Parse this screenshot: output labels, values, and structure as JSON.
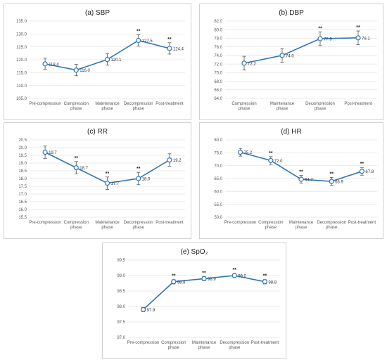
{
  "chart_data": [
    {
      "type": "line",
      "title": "(a) SBP",
      "categories": [
        "Pre-compression",
        "Compression phase",
        "Maintenance phase",
        "Decompression phase",
        "Post-treatment"
      ],
      "values": [
        118.4,
        116.0,
        120.1,
        127.5,
        124.4
      ],
      "error": [
        2.2,
        2.2,
        2.2,
        2.2,
        2.2
      ],
      "significance": [
        "",
        "",
        "",
        "**",
        "**"
      ],
      "ylim": [
        105.0,
        135.0
      ],
      "yticks": [
        "105.0",
        "110.0",
        "115.0",
        "120.0",
        "125.0",
        "130.0",
        "135.0"
      ],
      "grid": true,
      "color": "#2e75b6"
    },
    {
      "type": "line",
      "title": "(b) DBP",
      "categories": [
        "Compression phase",
        "Maintenance phase",
        "Decompression phase",
        "Post-treatment"
      ],
      "values": [
        72.2,
        74.0,
        77.9,
        78.1
      ],
      "error": [
        1.6,
        1.6,
        1.6,
        1.6
      ],
      "significance": [
        "",
        "",
        "**",
        "**"
      ],
      "ylim": [
        64.0,
        82.0
      ],
      "yticks": [
        "64.0",
        "66.0",
        "68.0",
        "70.0",
        "72.0",
        "74.0",
        "76.0",
        "78.0",
        "80.0",
        "82.0"
      ],
      "grid": true,
      "color": "#2e75b6"
    },
    {
      "type": "line",
      "title": "(c) RR",
      "categories": [
        "Pre-compression",
        "Compression phase",
        "Maintenance phase",
        "Decompression phase",
        "Post-treatment"
      ],
      "values": [
        19.7,
        18.7,
        17.7,
        18.0,
        19.2
      ],
      "error": [
        0.4,
        0.4,
        0.4,
        0.4,
        0.4
      ],
      "significance": [
        "",
        "**",
        "**",
        "**",
        ""
      ],
      "ylim": [
        15.5,
        20.5
      ],
      "yticks": [
        "15.5",
        "16.0",
        "16.5",
        "17.0",
        "17.5",
        "18.0",
        "18.5",
        "19.0",
        "19.5",
        "20.0",
        "20.5"
      ],
      "grid": true,
      "color": "#2e75b6"
    },
    {
      "type": "line",
      "title": "(d) HR",
      "categories": [
        "Pre-compression",
        "Compression phase",
        "Maintenance phase",
        "Decompression phase",
        "Post-treatment"
      ],
      "values": [
        75.2,
        72.0,
        64.7,
        63.9,
        67.8
      ],
      "error": [
        1.5,
        1.5,
        1.5,
        1.5,
        1.5
      ],
      "significance": [
        "",
        "**",
        "**",
        "**",
        "**"
      ],
      "ylim": [
        50.0,
        80.0
      ],
      "yticks": [
        "50.0",
        "55.0",
        "60.0",
        "65.0",
        "70.0",
        "75.0",
        "80.0"
      ],
      "grid": true,
      "color": "#2e75b6"
    },
    {
      "type": "line",
      "title": "(e) SpO₂",
      "categories": [
        "Pre-compression",
        "Compression phase",
        "Maintenance phase",
        "Decompression phase",
        "Post-treatment"
      ],
      "values": [
        97.9,
        98.8,
        98.9,
        99.0,
        98.8
      ],
      "error": [
        0.07,
        0.07,
        0.07,
        0.07,
        0.07
      ],
      "significance": [
        "",
        "**",
        "**",
        "**",
        "**"
      ],
      "ylim": [
        97.0,
        99.5
      ],
      "yticks": [
        "97.0",
        "97.5",
        "98.0",
        "98.5",
        "99.0",
        "99.5"
      ],
      "grid": true,
      "color": "#2e75b6"
    }
  ]
}
